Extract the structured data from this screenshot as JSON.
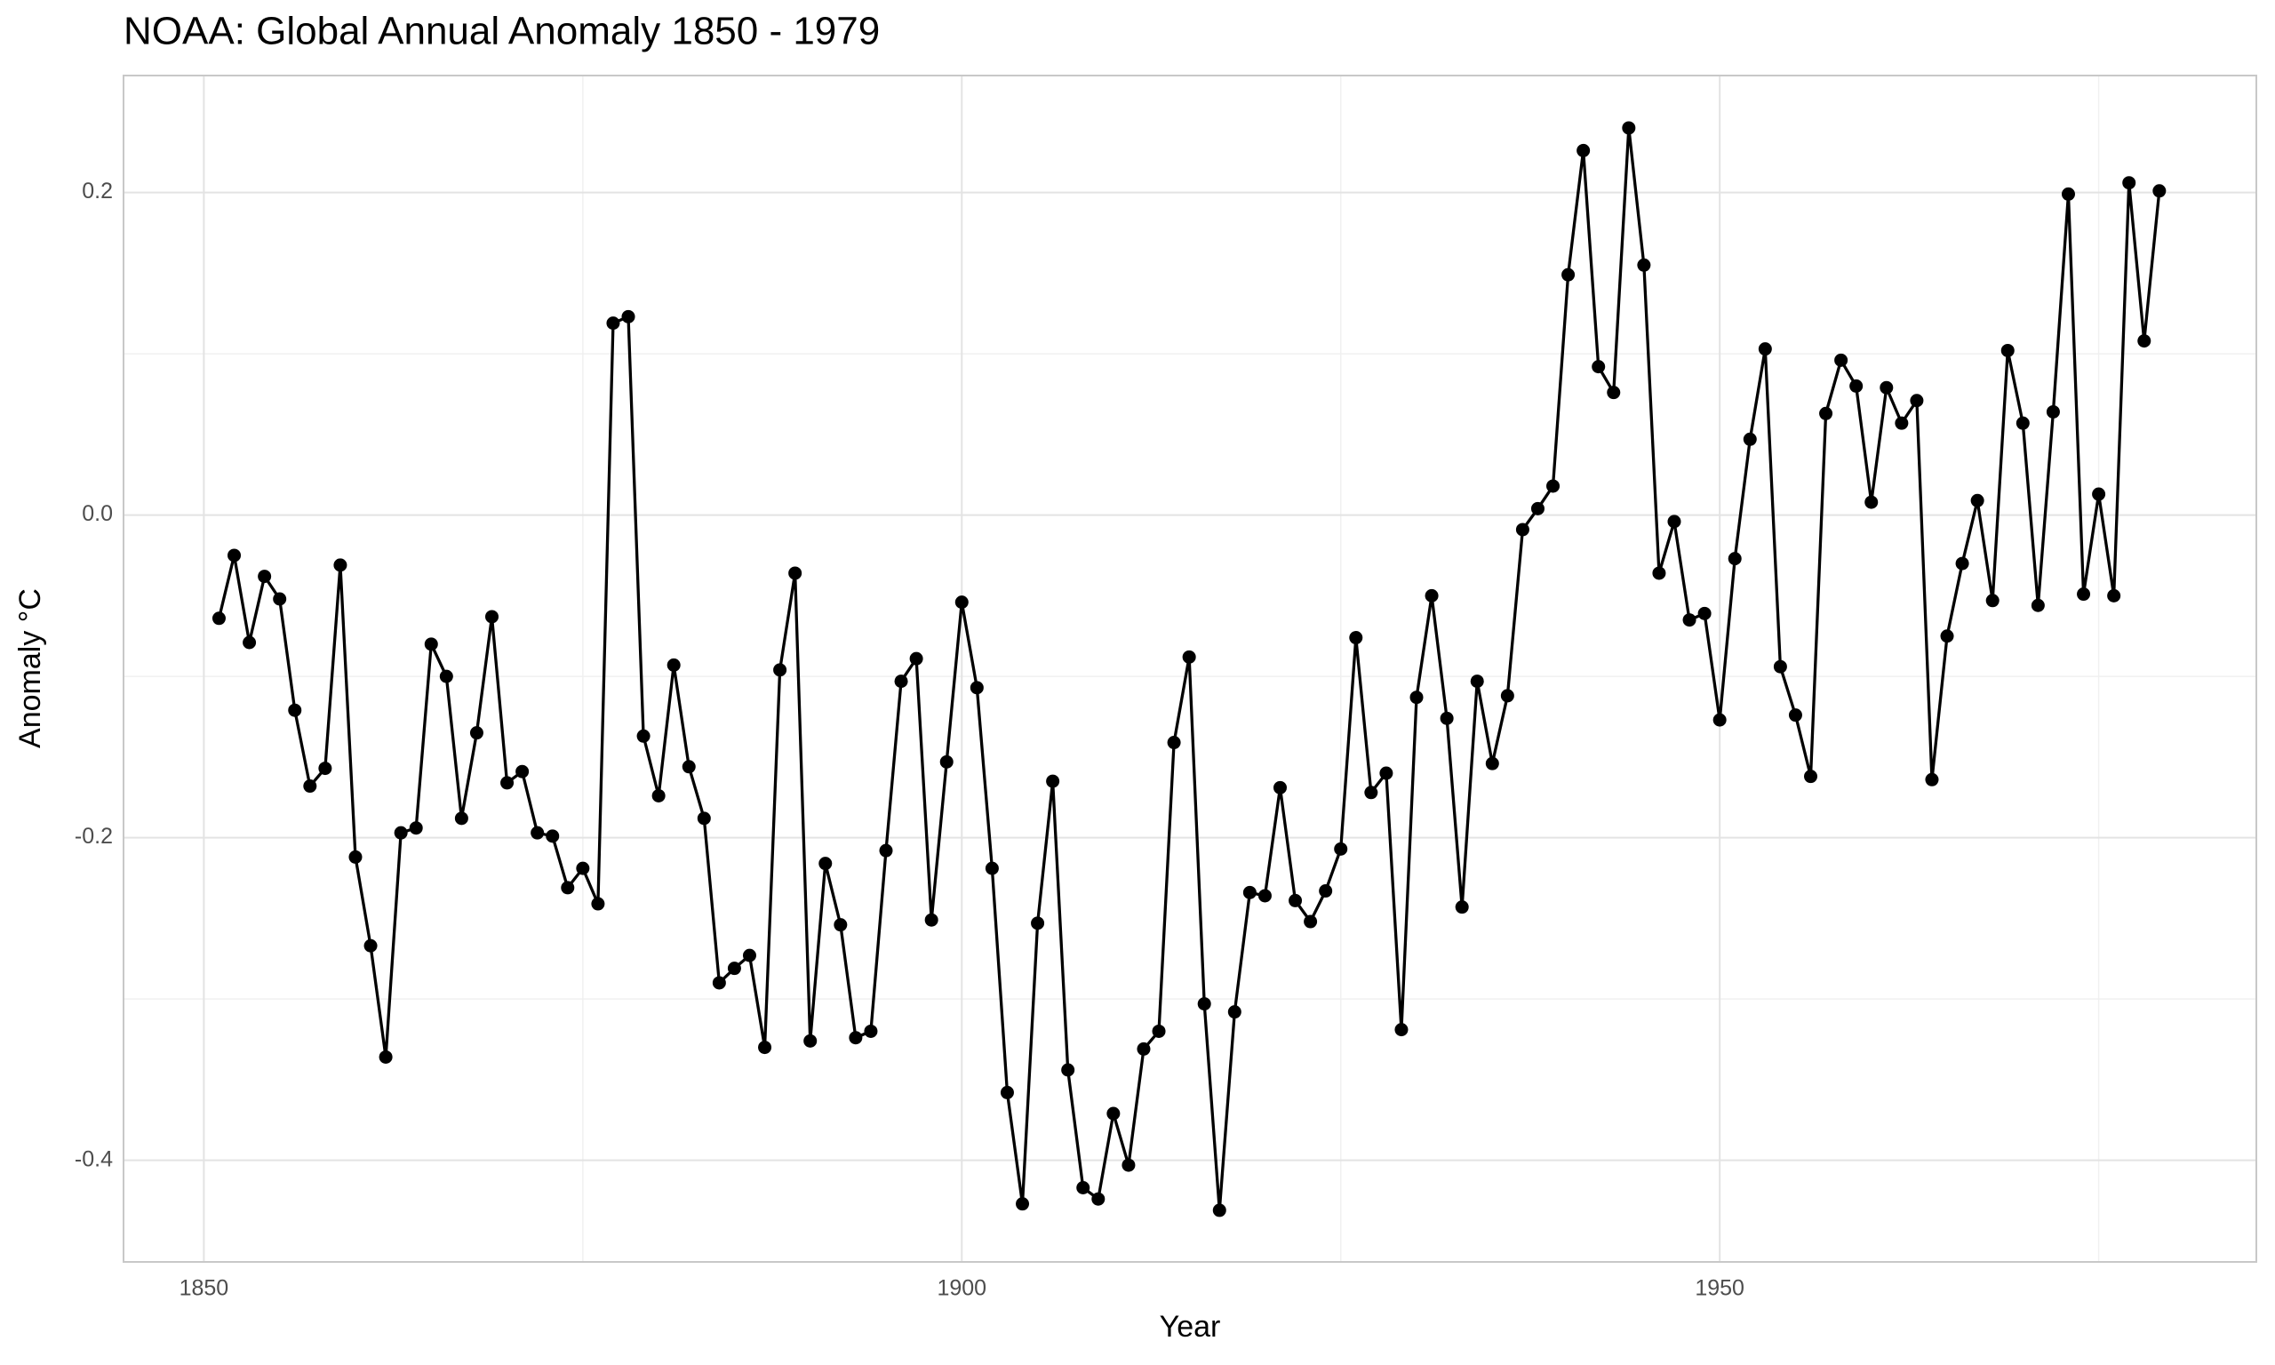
{
  "chart_data": {
    "type": "line",
    "title": "NOAA: Global Annual Anomaly 1850 - 1979",
    "x_label": "Year",
    "y_label": "Anomaly °C",
    "x": [
      1851,
      1852,
      1853,
      1854,
      1855,
      1856,
      1857,
      1858,
      1859,
      1860,
      1861,
      1862,
      1863,
      1864,
      1865,
      1866,
      1867,
      1868,
      1869,
      1870,
      1871,
      1872,
      1873,
      1874,
      1875,
      1876,
      1877,
      1878,
      1879,
      1880,
      1881,
      1882,
      1883,
      1884,
      1885,
      1886,
      1887,
      1888,
      1889,
      1890,
      1891,
      1892,
      1893,
      1894,
      1895,
      1896,
      1897,
      1898,
      1899,
      1900,
      1901,
      1902,
      1903,
      1904,
      1905,
      1906,
      1907,
      1908,
      1909,
      1910,
      1911,
      1912,
      1913,
      1914,
      1915,
      1916,
      1917,
      1918,
      1919,
      1920,
      1921,
      1922,
      1923,
      1924,
      1925,
      1926,
      1927,
      1928,
      1929,
      1930,
      1931,
      1932,
      1933,
      1934,
      1935,
      1936,
      1937,
      1938,
      1939,
      1940,
      1941,
      1942,
      1943,
      1944,
      1945,
      1946,
      1947,
      1948,
      1949,
      1950,
      1951,
      1952,
      1953,
      1954,
      1955,
      1956,
      1957,
      1958,
      1959,
      1960,
      1961,
      1962,
      1963,
      1964,
      1965,
      1966,
      1967,
      1968,
      1969,
      1970,
      1971,
      1972,
      1973,
      1974,
      1975,
      1976,
      1977,
      1978,
      1979
    ],
    "series": [
      {
        "color": "#000000",
        "values": [
          -0.064,
          -0.025,
          -0.079,
          -0.038,
          -0.052,
          -0.121,
          -0.168,
          -0.157,
          -0.031,
          -0.212,
          -0.267,
          -0.336,
          -0.197,
          -0.194,
          -0.08,
          -0.1,
          -0.188,
          -0.135,
          -0.063,
          -0.166,
          -0.159,
          -0.197,
          -0.199,
          -0.231,
          -0.219,
          -0.241,
          0.119,
          0.123,
          -0.137,
          -0.174,
          -0.093,
          -0.156,
          -0.188,
          -0.29,
          -0.281,
          -0.273,
          -0.33,
          -0.096,
          -0.036,
          -0.326,
          -0.216,
          -0.254,
          -0.324,
          -0.32,
          -0.208,
          -0.103,
          -0.089,
          -0.251,
          -0.153,
          -0.054,
          -0.107,
          -0.219,
          -0.358,
          -0.427,
          -0.253,
          -0.165,
          -0.344,
          -0.417,
          -0.424,
          -0.371,
          -0.403,
          -0.331,
          -0.32,
          -0.141,
          -0.088,
          -0.303,
          -0.431,
          -0.308,
          -0.234,
          -0.236,
          -0.169,
          -0.239,
          -0.252,
          -0.233,
          -0.207,
          -0.076,
          -0.172,
          -0.16,
          -0.319,
          -0.113,
          -0.05,
          -0.126,
          -0.243,
          -0.103,
          -0.154,
          -0.112,
          -0.009,
          0.004,
          0.018,
          0.149,
          0.226,
          0.092,
          0.076,
          0.24,
          0.155,
          -0.036,
          -0.004,
          -0.065,
          -0.061,
          -0.127,
          -0.027,
          0.047,
          0.103,
          -0.094,
          -0.124,
          -0.162,
          0.063,
          0.096,
          0.08,
          0.008,
          0.079,
          0.057,
          0.071,
          -0.164,
          -0.075,
          -0.03,
          0.009,
          -0.053,
          0.102,
          0.057,
          -0.056,
          0.064,
          0.199,
          -0.049,
          0.013,
          -0.05,
          0.206,
          0.108,
          0.201
        ]
      }
    ],
    "xlim": [
      1844.7,
      1985.4
    ],
    "ylim": [
      -0.463,
      0.2725
    ],
    "xticks": [
      1850,
      1900,
      1950
    ],
    "yticks": [
      {
        "value": -0.4,
        "label": "-0.4"
      },
      {
        "value": -0.2,
        "label": "-0.2"
      },
      {
        "value": 0,
        "label": "0.0"
      },
      {
        "value": 0.2,
        "label": "0.2"
      }
    ],
    "minor_xticks": [
      1875,
      1925,
      1975
    ],
    "minor_yticks": [
      -0.3,
      -0.1,
      0.1
    ],
    "grid": true
  }
}
